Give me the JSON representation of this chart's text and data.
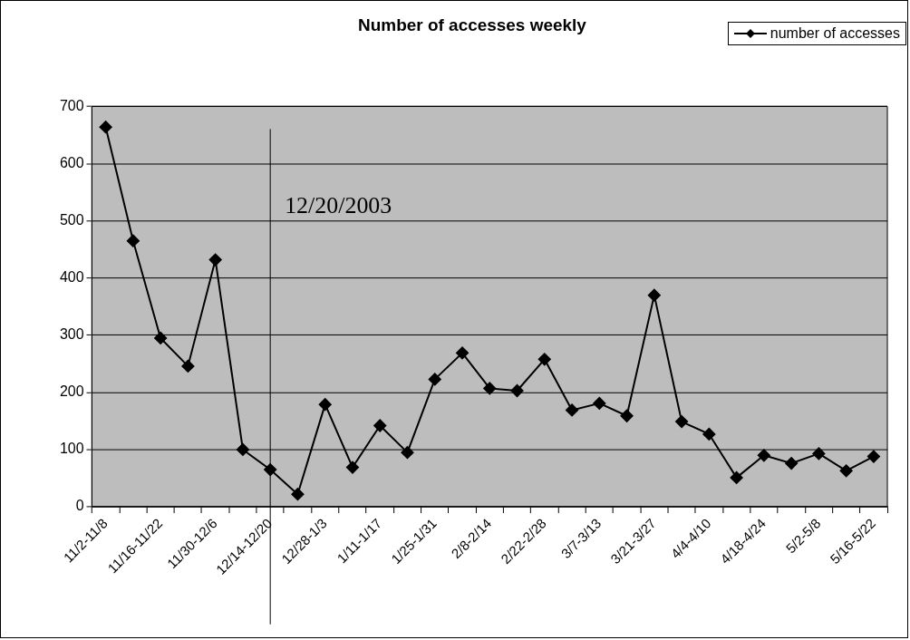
{
  "chart_data": {
    "type": "line",
    "title": "Number of accesses weekly",
    "categories": [
      "11/2-11/8",
      null,
      "11/16-11/22",
      null,
      "11/30-12/6",
      null,
      "12/14-12/20",
      null,
      "12/28-1/3",
      null,
      "1/11-1/17",
      null,
      "1/25-1/31",
      null,
      "2/8-2/14",
      null,
      "2/22-2/28",
      null,
      "3/7-3/13",
      null,
      "3/21-3/27",
      null,
      "4/4-4/10",
      null,
      "4/18-4/24",
      null,
      "5/2-5/8",
      null,
      "5/16-5/22"
    ],
    "series": [
      {
        "name": "number of accesses",
        "color": "#000000",
        "values": [
          664,
          465,
          295,
          246,
          432,
          100,
          65,
          22,
          179,
          69,
          142,
          95,
          223,
          269,
          207,
          203,
          258,
          169,
          181,
          159,
          370,
          149,
          127,
          51,
          90,
          76,
          93,
          63,
          88
        ]
      }
    ],
    "ylim": [
      0,
      700
    ],
    "yticks": [
      0,
      100,
      200,
      300,
      400,
      500,
      600,
      700
    ],
    "ref_lines": [
      {
        "axis": "x",
        "value": "12/14-12/20",
        "label": "12/20/2003",
        "color": "#000000"
      }
    ],
    "grid": "y",
    "legend": "top right",
    "marker": "diamond",
    "line_style": "solid"
  }
}
